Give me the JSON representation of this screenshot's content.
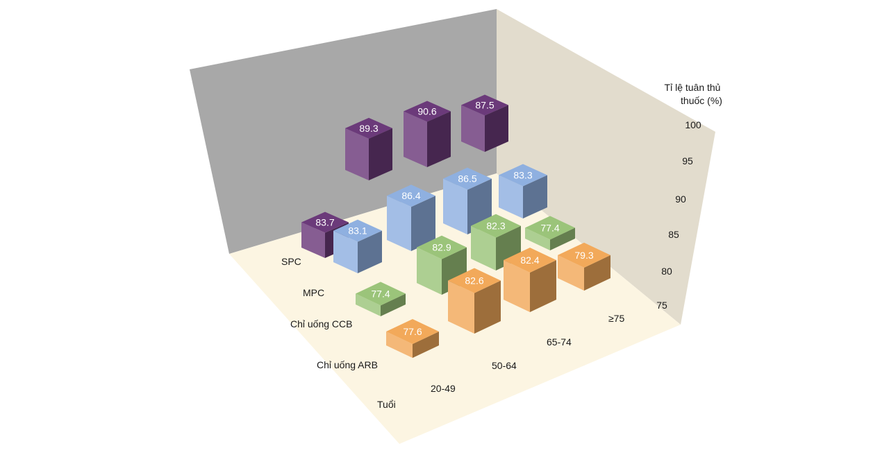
{
  "chart_data": {
    "type": "bar",
    "subtype": "3d-grouped",
    "title": "",
    "zlabel": "Tỉ lệ tuân thủ thuốc (%)",
    "zlabel_lines": [
      "Tỉ lệ tuân thủ",
      "thuốc (%)"
    ],
    "xlabel": "Tuổi",
    "categories": [
      "20-49",
      "50-64",
      "65-74",
      "≥75"
    ],
    "series": [
      {
        "name": "SPC",
        "color": "#6b3a7a",
        "values": [
          83.7,
          89.3,
          90.6,
          87.5
        ]
      },
      {
        "name": "MPC",
        "color": "#8fb0e0",
        "values": [
          83.1,
          86.4,
          86.5,
          83.3
        ]
      },
      {
        "name": "Chỉ uống CCB",
        "color": "#9bc47a",
        "values": [
          77.4,
          82.9,
          82.3,
          77.4
        ]
      },
      {
        "name": "Chỉ uống ARB",
        "color": "#f2a95a",
        "values": [
          77.6,
          82.6,
          82.4,
          79.3
        ]
      }
    ],
    "zticks": [
      75,
      80,
      85,
      90,
      95,
      100
    ],
    "zlim": [
      75,
      100
    ],
    "colors": {
      "back_wall": "#a8a8a8",
      "side_wall": "#e2dccd",
      "floor": "#fcf5e2"
    }
  }
}
